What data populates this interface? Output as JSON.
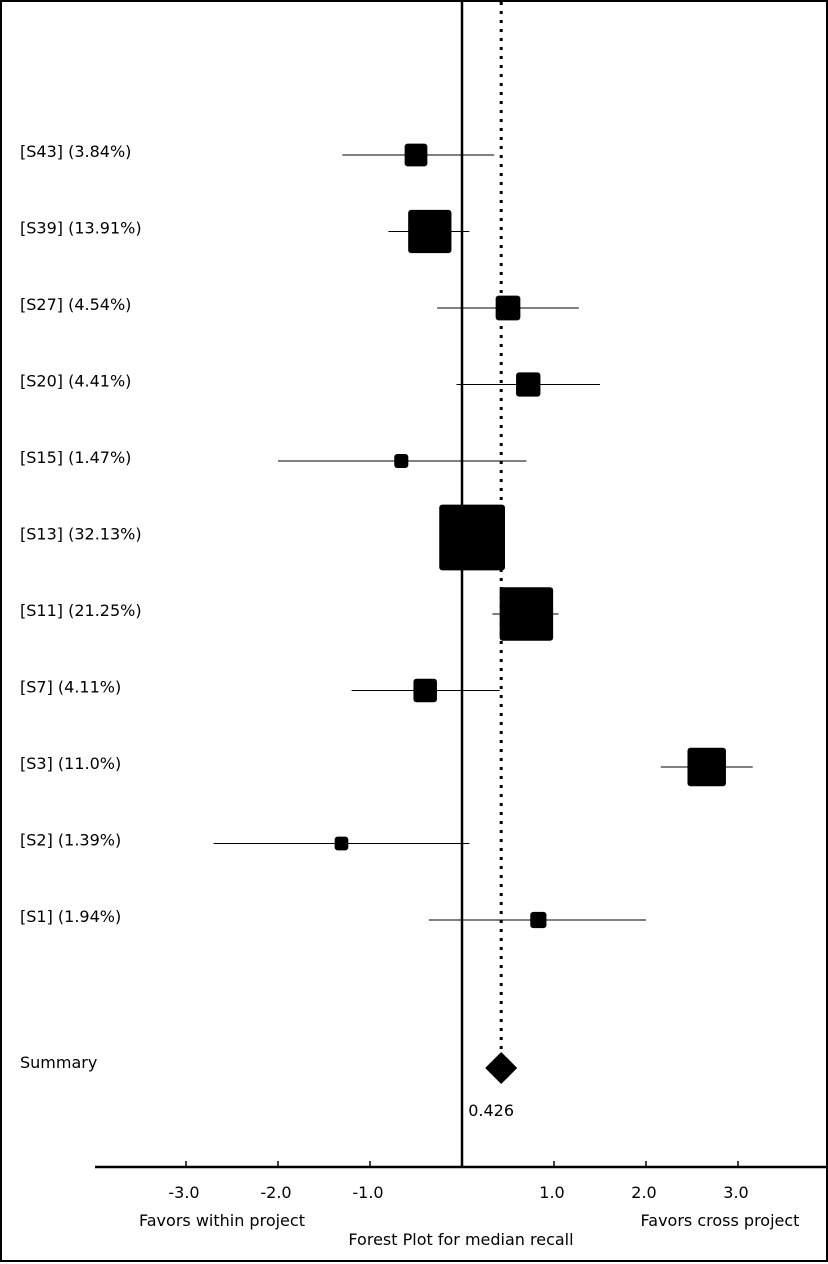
{
  "chart_data": {
    "type": "forest",
    "title": "Forest Plot for median recall",
    "xlabel_left": "Favors within project",
    "xlabel_right": "Favors cross project",
    "xlim": [
      -4.0,
      4.0
    ],
    "x_ticks": [
      -3.0,
      -2.0,
      -1.0,
      1.0,
      2.0,
      3.0
    ],
    "x_tick_labels": [
      "-3.0",
      "-2.0",
      "-1.0",
      "1.0",
      "2.0",
      "3.0"
    ],
    "null_line": 0.0,
    "studies": [
      {
        "label": "[S43] (3.84%)",
        "weight": 3.84,
        "estimate": -0.5,
        "ci_low": -1.3,
        "ci_high": 0.35
      },
      {
        "label": "[S39] (13.91%)",
        "weight": 13.91,
        "estimate": -0.35,
        "ci_low": -0.8,
        "ci_high": 0.08
      },
      {
        "label": "[S27] (4.54%)",
        "weight": 4.54,
        "estimate": 0.5,
        "ci_low": -0.27,
        "ci_high": 1.27
      },
      {
        "label": "[S20] (4.41%)",
        "weight": 4.41,
        "estimate": 0.72,
        "ci_low": -0.06,
        "ci_high": 1.5
      },
      {
        "label": "[S15] (1.47%)",
        "weight": 1.47,
        "estimate": -0.66,
        "ci_low": -2.0,
        "ci_high": 0.7
      },
      {
        "label": "[S13] (32.13%)",
        "weight": 32.13,
        "estimate": 0.11,
        "ci_low": -0.2,
        "ci_high": 0.42
      },
      {
        "label": "[S11] (21.25%)",
        "weight": 21.25,
        "estimate": 0.7,
        "ci_low": 0.33,
        "ci_high": 1.05
      },
      {
        "label": "[S7] (4.11%)",
        "weight": 4.11,
        "estimate": -0.4,
        "ci_low": -1.2,
        "ci_high": 0.41
      },
      {
        "label": "[S3] (11.0%)",
        "weight": 11.0,
        "estimate": 2.66,
        "ci_low": 2.16,
        "ci_high": 3.16
      },
      {
        "label": "[S2] (1.39%)",
        "weight": 1.39,
        "estimate": -1.31,
        "ci_low": -2.7,
        "ci_high": 0.08
      },
      {
        "label": "[S1] (1.94%)",
        "weight": 1.94,
        "estimate": 0.83,
        "ci_low": -0.36,
        "ci_high": 2.0
      }
    ],
    "summary": {
      "label": "Summary",
      "estimate": 0.426,
      "estimate_label": "0.426"
    }
  }
}
